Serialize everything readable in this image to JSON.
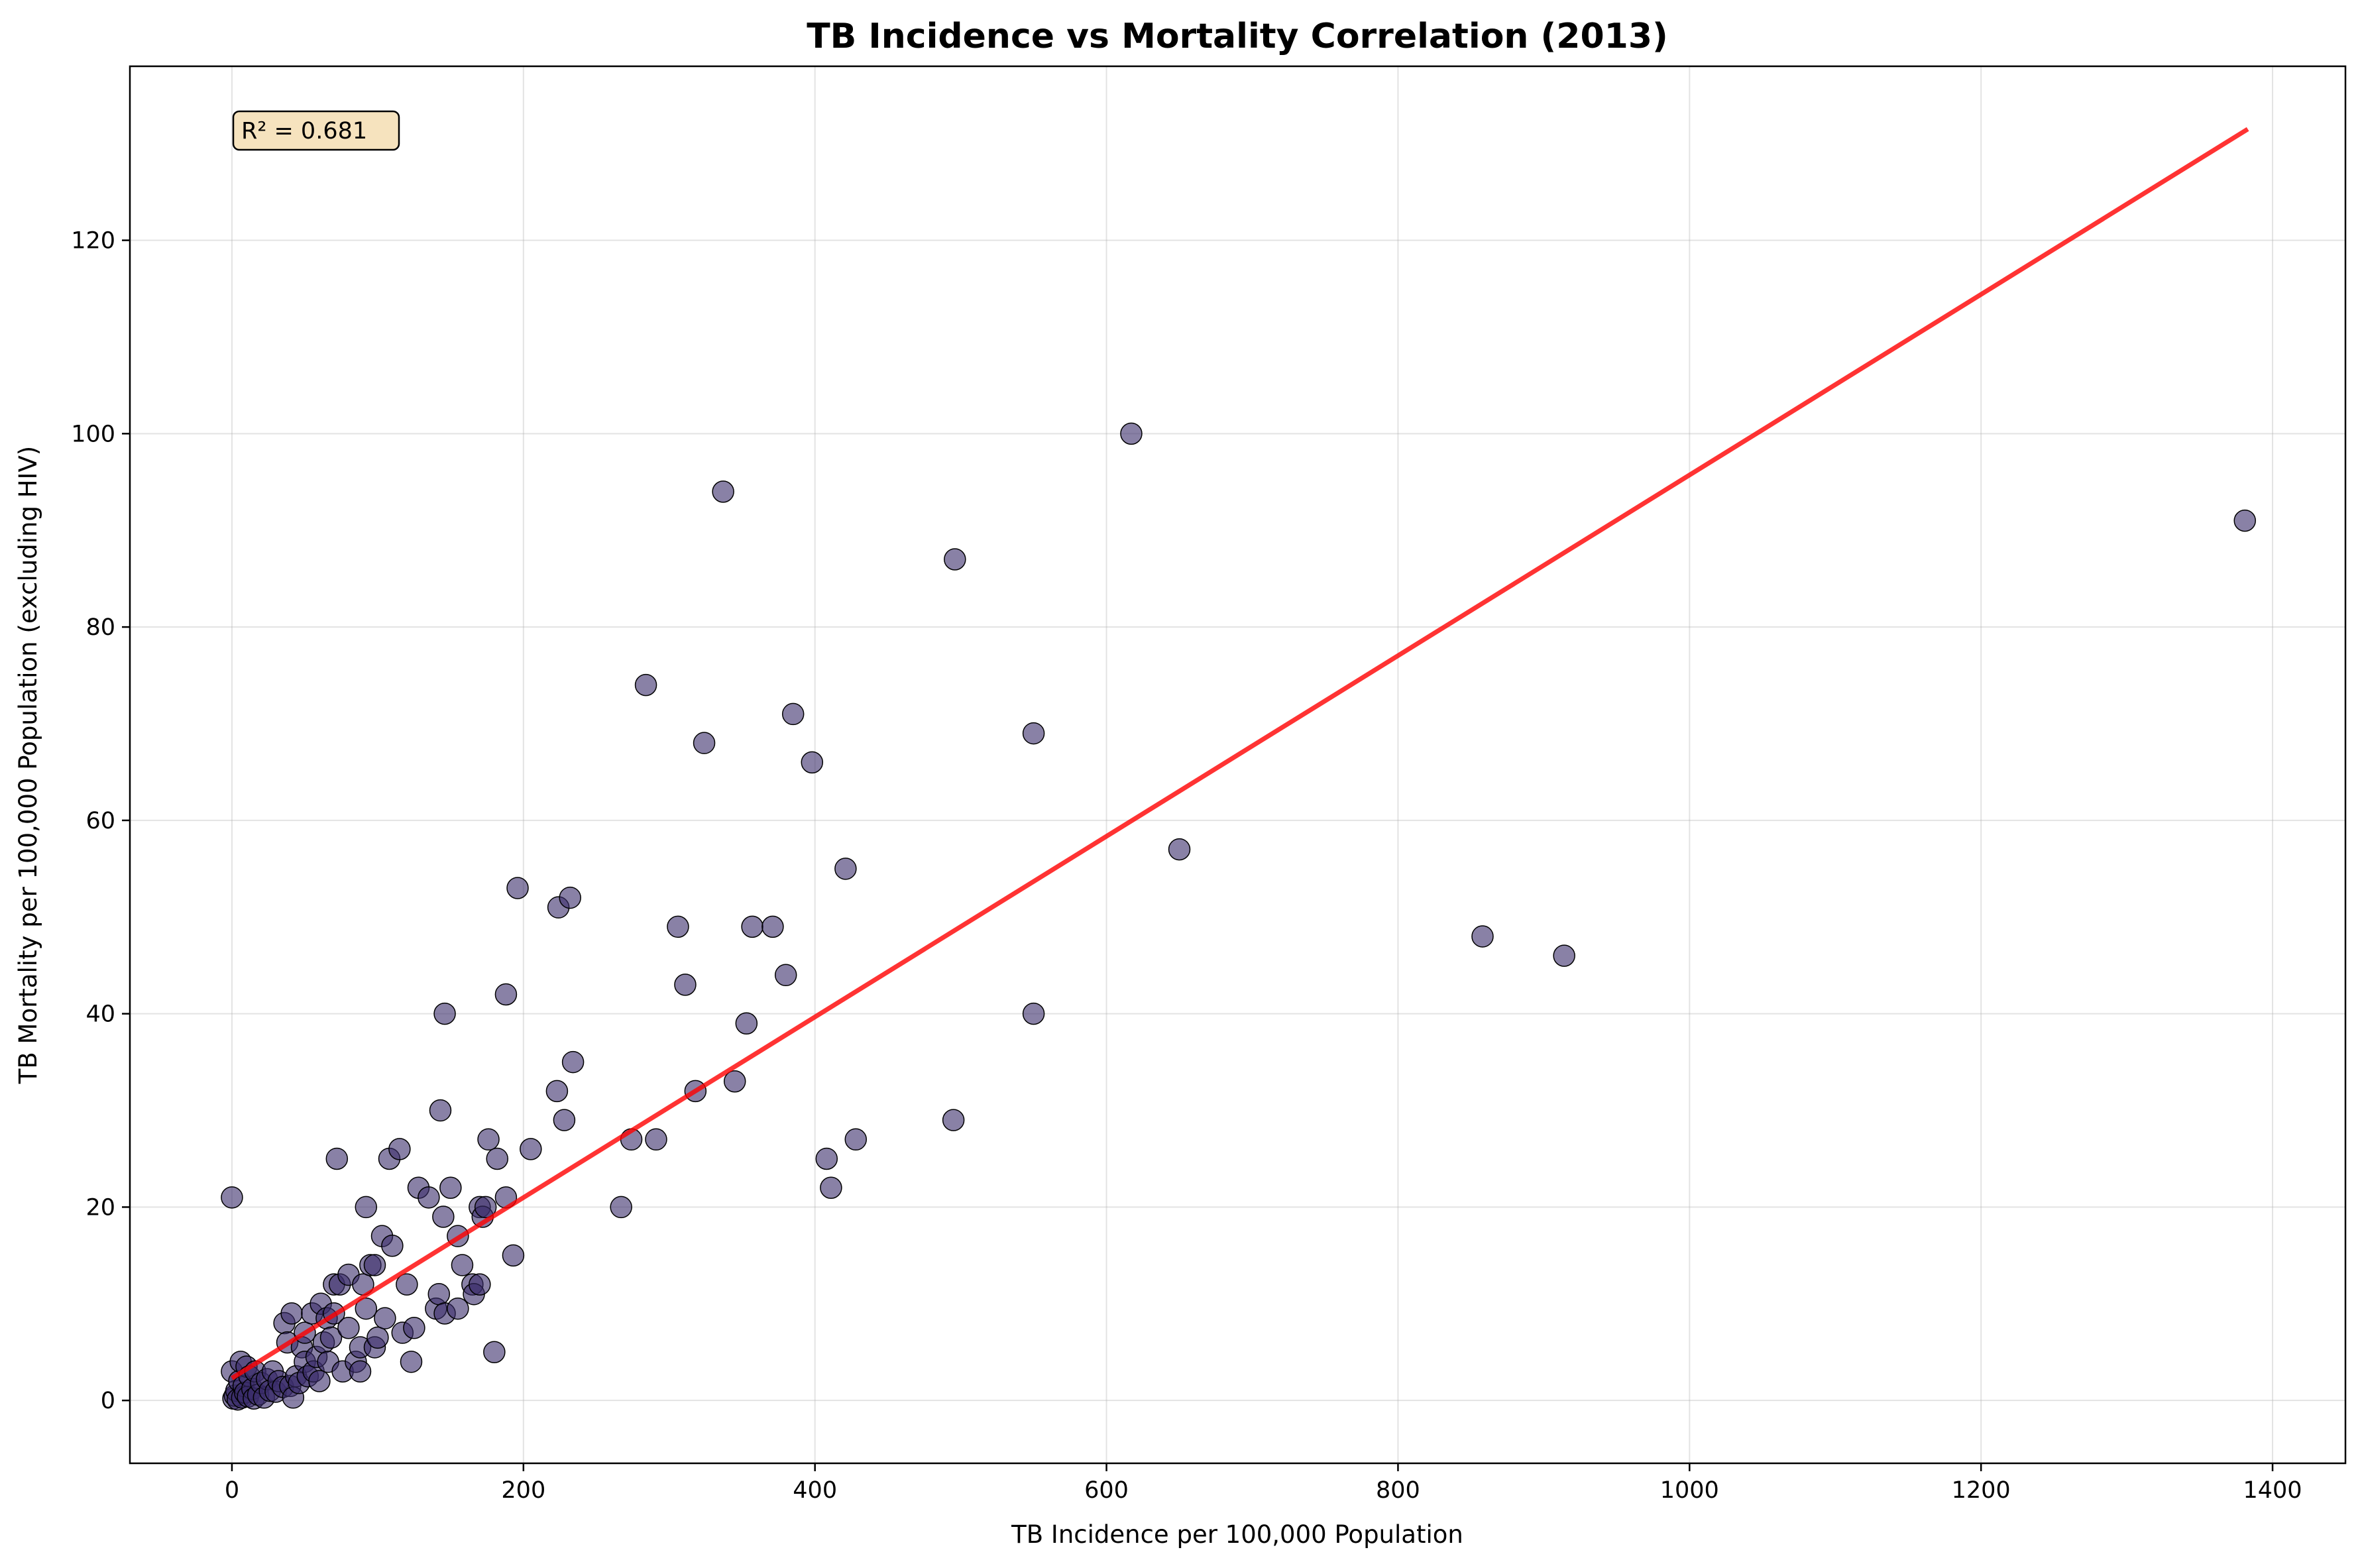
{
  "chart_data": {
    "type": "scatter",
    "title": "TB Incidence vs Mortality Correlation (2013)",
    "xlabel": "TB Incidence per 100,000 Population",
    "ylabel": "TB Mortality per 100,000 Population (excluding HIV)",
    "xlim": [
      -70,
      1450
    ],
    "ylim": [
      -6.5,
      138
    ],
    "xticks": [
      0,
      200,
      400,
      600,
      800,
      1000,
      1200,
      1400
    ],
    "yticks": [
      0,
      20,
      40,
      60,
      80,
      100,
      120
    ],
    "grid": true,
    "annotation": "R² = 0.681",
    "annotation_position": "top-left",
    "point_color": "#3b2d6b",
    "regression_color": "#ff0000",
    "regression_line": {
      "x": [
        0,
        1383
      ],
      "y": [
        2.3,
        131.5
      ]
    },
    "points": [
      {
        "x": 0,
        "y": 21
      },
      {
        "x": 0,
        "y": 3
      },
      {
        "x": 1,
        "y": 0.2
      },
      {
        "x": 2,
        "y": 0.5
      },
      {
        "x": 3,
        "y": 1
      },
      {
        "x": 4,
        "y": 0.1
      },
      {
        "x": 5,
        "y": 2
      },
      {
        "x": 6,
        "y": 4
      },
      {
        "x": 7,
        "y": 0.3
      },
      {
        "x": 8,
        "y": 1.5
      },
      {
        "x": 9,
        "y": 0.8
      },
      {
        "x": 10,
        "y": 3.5
      },
      {
        "x": 11,
        "y": 0.4
      },
      {
        "x": 12,
        "y": 2.5
      },
      {
        "x": 14,
        "y": 1.2
      },
      {
        "x": 15,
        "y": 0.2
      },
      {
        "x": 16,
        "y": 3
      },
      {
        "x": 18,
        "y": 0.6
      },
      {
        "x": 20,
        "y": 1.8
      },
      {
        "x": 22,
        "y": 0.3
      },
      {
        "x": 24,
        "y": 2.2
      },
      {
        "x": 26,
        "y": 1
      },
      {
        "x": 28,
        "y": 3
      },
      {
        "x": 30,
        "y": 0.9
      },
      {
        "x": 32,
        "y": 2
      },
      {
        "x": 35,
        "y": 1.4
      },
      {
        "x": 36,
        "y": 8
      },
      {
        "x": 38,
        "y": 6
      },
      {
        "x": 40,
        "y": 1.5
      },
      {
        "x": 41,
        "y": 9
      },
      {
        "x": 42,
        "y": 0.3
      },
      {
        "x": 44,
        "y": 2.5
      },
      {
        "x": 46,
        "y": 1.8
      },
      {
        "x": 48,
        "y": 5.5
      },
      {
        "x": 50,
        "y": 7
      },
      {
        "x": 50,
        "y": 4
      },
      {
        "x": 52,
        "y": 2.5
      },
      {
        "x": 55,
        "y": 9
      },
      {
        "x": 56,
        "y": 3
      },
      {
        "x": 58,
        "y": 4.5
      },
      {
        "x": 60,
        "y": 2
      },
      {
        "x": 61,
        "y": 10
      },
      {
        "x": 63,
        "y": 6
      },
      {
        "x": 65,
        "y": 8.5
      },
      {
        "x": 66,
        "y": 4
      },
      {
        "x": 68,
        "y": 6.5
      },
      {
        "x": 70,
        "y": 12
      },
      {
        "x": 70,
        "y": 9
      },
      {
        "x": 72,
        "y": 25
      },
      {
        "x": 74,
        "y": 12
      },
      {
        "x": 76,
        "y": 3
      },
      {
        "x": 80,
        "y": 13
      },
      {
        "x": 80,
        "y": 7.5
      },
      {
        "x": 85,
        "y": 4
      },
      {
        "x": 88,
        "y": 3
      },
      {
        "x": 88,
        "y": 5.5
      },
      {
        "x": 90,
        "y": 12
      },
      {
        "x": 92,
        "y": 9.5
      },
      {
        "x": 92,
        "y": 20
      },
      {
        "x": 95,
        "y": 14
      },
      {
        "x": 98,
        "y": 14
      },
      {
        "x": 98,
        "y": 5.5
      },
      {
        "x": 100,
        "y": 6.5
      },
      {
        "x": 103,
        "y": 17
      },
      {
        "x": 105,
        "y": 8.5
      },
      {
        "x": 108,
        "y": 25
      },
      {
        "x": 110,
        "y": 16
      },
      {
        "x": 115,
        "y": 26
      },
      {
        "x": 117,
        "y": 7
      },
      {
        "x": 120,
        "y": 12
      },
      {
        "x": 123,
        "y": 4
      },
      {
        "x": 125,
        "y": 7.5
      },
      {
        "x": 128,
        "y": 22
      },
      {
        "x": 135,
        "y": 21
      },
      {
        "x": 140,
        "y": 9.5
      },
      {
        "x": 142,
        "y": 11
      },
      {
        "x": 143,
        "y": 30
      },
      {
        "x": 145,
        "y": 19
      },
      {
        "x": 146,
        "y": 40
      },
      {
        "x": 146,
        "y": 9
      },
      {
        "x": 150,
        "y": 22
      },
      {
        "x": 155,
        "y": 17
      },
      {
        "x": 155,
        "y": 9.5
      },
      {
        "x": 158,
        "y": 14
      },
      {
        "x": 165,
        "y": 12
      },
      {
        "x": 166,
        "y": 11
      },
      {
        "x": 170,
        "y": 12
      },
      {
        "x": 170,
        "y": 20
      },
      {
        "x": 172,
        "y": 19
      },
      {
        "x": 174,
        "y": 20
      },
      {
        "x": 176,
        "y": 27
      },
      {
        "x": 180,
        "y": 5
      },
      {
        "x": 182,
        "y": 25
      },
      {
        "x": 188,
        "y": 21
      },
      {
        "x": 188,
        "y": 42
      },
      {
        "x": 193,
        "y": 15
      },
      {
        "x": 196,
        "y": 53
      },
      {
        "x": 205,
        "y": 26
      },
      {
        "x": 223,
        "y": 32
      },
      {
        "x": 224,
        "y": 51
      },
      {
        "x": 228,
        "y": 29
      },
      {
        "x": 232,
        "y": 52
      },
      {
        "x": 234,
        "y": 35
      },
      {
        "x": 267,
        "y": 20
      },
      {
        "x": 274,
        "y": 27
      },
      {
        "x": 284,
        "y": 74
      },
      {
        "x": 291,
        "y": 27
      },
      {
        "x": 306,
        "y": 49
      },
      {
        "x": 311,
        "y": 43
      },
      {
        "x": 318,
        "y": 32
      },
      {
        "x": 324,
        "y": 68
      },
      {
        "x": 337,
        "y": 94
      },
      {
        "x": 345,
        "y": 33
      },
      {
        "x": 353,
        "y": 39
      },
      {
        "x": 357,
        "y": 49
      },
      {
        "x": 371,
        "y": 49
      },
      {
        "x": 380,
        "y": 44
      },
      {
        "x": 385,
        "y": 71
      },
      {
        "x": 398,
        "y": 66
      },
      {
        "x": 408,
        "y": 25
      },
      {
        "x": 411,
        "y": 22
      },
      {
        "x": 421,
        "y": 55
      },
      {
        "x": 428,
        "y": 27
      },
      {
        "x": 495,
        "y": 29
      },
      {
        "x": 496,
        "y": 87
      },
      {
        "x": 550,
        "y": 69
      },
      {
        "x": 550,
        "y": 40
      },
      {
        "x": 617,
        "y": 100
      },
      {
        "x": 650,
        "y": 57
      },
      {
        "x": 858,
        "y": 48
      },
      {
        "x": 914,
        "y": 46
      },
      {
        "x": 1381,
        "y": 91
      }
    ]
  }
}
